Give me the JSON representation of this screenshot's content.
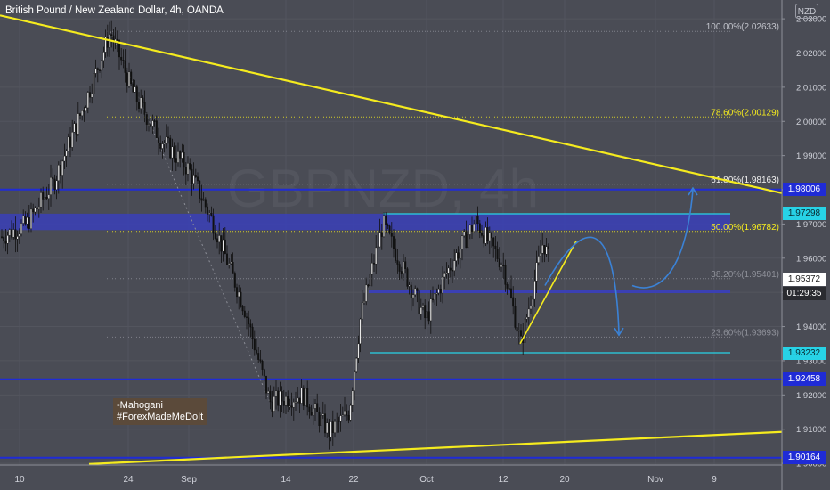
{
  "header": {
    "title": "British Pound / New Zealand Dollar, 4h, OANDA",
    "currency_label": "NZD"
  },
  "annotation": {
    "lines": [
      "-Mahogani",
      "#ForexMadeMeDoIt"
    ]
  },
  "watermark": "GBPNZD, 4h",
  "colors": {
    "background": "#4a4c55",
    "trendline": "#f5eb1e",
    "support": "#1f2bd6",
    "cyan": "#27d2e6",
    "zone": "#3a3fb8",
    "candle": "#111111",
    "path": "#3b82d6"
  },
  "chart_data": {
    "type": "candlestick",
    "symbol": "GBPNZD",
    "timeframe": "4h",
    "ylim": [
      1.8995,
      2.0355
    ],
    "y_ticks": [
      "2.03000",
      "2.02000",
      "2.01000",
      "2.00000",
      "1.99000",
      "1.98000",
      "1.97000",
      "1.96000",
      "1.95000",
      "1.94000",
      "1.93000",
      "1.92000",
      "1.91000",
      "1.90000"
    ],
    "x_ticks": [
      "10",
      "24",
      "Sep",
      "14",
      "22",
      "Oct",
      "12",
      "20",
      "Nov",
      "9"
    ],
    "price_series_approx": [
      [
        "10",
        1.966
      ],
      [
        "13",
        1.97
      ],
      [
        "17",
        1.982
      ],
      [
        "20",
        2.005
      ],
      [
        "24",
        2.0262
      ],
      [
        "27",
        2.008
      ],
      [
        "31",
        1.995
      ],
      [
        "Sep",
        1.986
      ],
      [
        "4",
        1.97
      ],
      [
        "9",
        1.945
      ],
      [
        "14",
        1.918
      ],
      [
        "17",
        1.92
      ],
      [
        "20",
        1.909
      ],
      [
        "22",
        1.915
      ],
      [
        "24",
        1.943
      ],
      [
        "27",
        1.97
      ],
      [
        "Oct",
        1.942
      ],
      [
        "5",
        1.955
      ],
      [
        "9",
        1.971
      ],
      [
        "12",
        1.958
      ],
      [
        "15",
        1.935
      ],
      [
        "18",
        1.965
      ],
      [
        "20",
        1.956
      ]
    ],
    "fibonacci": [
      {
        "label": "100.00%(2.02633)",
        "price": 2.02633
      },
      {
        "label": "78.60%(2.00129)",
        "price": 2.00129
      },
      {
        "label": "61.80%(1.98163)",
        "price": 1.98163
      },
      {
        "label": "50.00%(1.96782)",
        "price": 1.96782
      },
      {
        "label": "38.20%(1.95401)",
        "price": 1.95401
      },
      {
        "label": "23.60%(1.93693)",
        "price": 1.93693
      }
    ],
    "price_labels": [
      {
        "text": "1.98006",
        "price": 1.98006,
        "style": "blue"
      },
      {
        "text": "1.97298",
        "price": 1.97298,
        "style": "cyan"
      },
      {
        "text": "1.95372",
        "price": 1.95372,
        "style": "white"
      },
      {
        "text": "01:29:35",
        "price": 1.9496,
        "style": "dark"
      },
      {
        "text": "1.93232",
        "price": 1.93232,
        "style": "cyan"
      },
      {
        "text": "1.92458",
        "price": 1.92458,
        "style": "blue"
      },
      {
        "text": "1.90164",
        "price": 1.90164,
        "style": "blue"
      }
    ],
    "horizontal_levels": [
      {
        "name": "blue",
        "price": 1.98006
      },
      {
        "name": "blue",
        "price": 1.92458
      },
      {
        "name": "blue",
        "price": 1.90164
      },
      {
        "name": "cyan",
        "price": 1.97298
      },
      {
        "name": "cyan",
        "price": 1.93232
      }
    ],
    "zones": [
      {
        "name": "supply-zone",
        "price_top": 1.973,
        "price_bottom": 1.9682
      },
      {
        "name": "support-line",
        "price": 1.9503
      }
    ],
    "trendlines": [
      {
        "name": "descending-trendline",
        "from": [
          "start",
          2.0355
        ],
        "to": [
          "end",
          1.979
        ]
      },
      {
        "name": "ascending-trendline",
        "from": [
          "start",
          1.8965
        ],
        "to": [
          "end",
          1.9092
        ]
      }
    ]
  }
}
